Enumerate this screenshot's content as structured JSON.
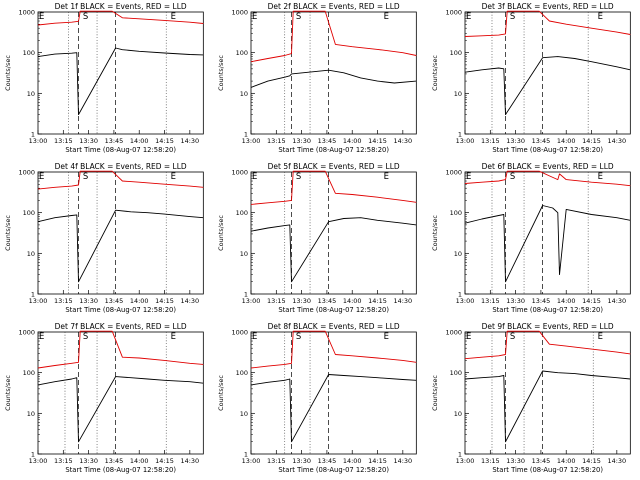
{
  "chart_data": [
    {
      "type": "line",
      "title": "Det 1f BLACK = Events, RED = LLD",
      "xlabel": "Start Time (08-Aug-07 12:58:20)",
      "ylabel": "Counts/sec",
      "yscale": "log",
      "ylim": [
        1,
        1000
      ],
      "y_ticks": [
        "1",
        "10",
        "100",
        "1000"
      ],
      "xlim": [
        "13:00",
        "14:38"
      ],
      "x_ticks": [
        "13:00",
        "13:15",
        "13:30",
        "13:45",
        "14:00",
        "14:15",
        "14:30"
      ],
      "markers": [
        {
          "label": "E",
          "x": "13:00"
        },
        {
          "label": "S",
          "x": "13:26"
        },
        {
          "label": "E",
          "x": "14:18"
        }
      ],
      "dotted_lines": [
        "13:18",
        "13:35",
        "14:16"
      ],
      "dashed_lines": [
        "13:24",
        "13:46"
      ],
      "series": [
        {
          "name": "Events",
          "color": "#000000",
          "x": [
            "13:00",
            "13:10",
            "13:20",
            "13:23",
            "13:24",
            "13:46",
            "13:50",
            "14:00",
            "14:15",
            "14:30",
            "14:38"
          ],
          "y": [
            80,
            92,
            97,
            100,
            3,
            130,
            118,
            108,
            98,
            90,
            88
          ]
        },
        {
          "name": "LLD",
          "color": "#e00000",
          "x": [
            "13:00",
            "13:10",
            "13:20",
            "13:24",
            "13:25",
            "13:44",
            "13:50",
            "14:00",
            "14:15",
            "14:30",
            "14:38"
          ],
          "y": [
            480,
            530,
            560,
            590,
            1100,
            1100,
            720,
            680,
            620,
            560,
            520
          ]
        }
      ]
    },
    {
      "type": "line",
      "title": "Det 2f BLACK = Events, RED = LLD",
      "xlabel": "Start Time (08-Aug-07 12:58:20)",
      "ylabel": "Counts/sec",
      "yscale": "log",
      "ylim": [
        1,
        1000
      ],
      "y_ticks": [
        "1",
        "10",
        "100",
        "1000"
      ],
      "xlim": [
        "13:00",
        "14:38"
      ],
      "x_ticks": [
        "13:00",
        "13:15",
        "13:30",
        "13:45",
        "14:00",
        "14:15",
        "14:30"
      ],
      "markers": [
        {
          "label": "E",
          "x": "13:00"
        },
        {
          "label": "S",
          "x": "13:26"
        },
        {
          "label": "E",
          "x": "14:18"
        }
      ],
      "dotted_lines": [
        "13:20",
        "13:35"
      ],
      "dashed_lines": [
        "13:24",
        "13:46"
      ],
      "series": [
        {
          "name": "Events",
          "color": "#000000",
          "x": [
            "13:00",
            "13:10",
            "13:20",
            "13:23",
            "13:24",
            "13:46",
            "13:55",
            "14:05",
            "14:15",
            "14:25",
            "14:38"
          ],
          "y": [
            14,
            20,
            25,
            27,
            30,
            37,
            32,
            24,
            20,
            18,
            20
          ]
        },
        {
          "name": "LLD",
          "color": "#e00000",
          "x": [
            "13:00",
            "13:10",
            "13:20",
            "13:24",
            "13:25",
            "13:44",
            "13:50",
            "14:00",
            "14:15",
            "14:30",
            "14:38"
          ],
          "y": [
            60,
            72,
            85,
            95,
            1100,
            1100,
            160,
            140,
            120,
            100,
            85
          ]
        }
      ]
    },
    {
      "type": "line",
      "title": "Det 3f BLACK = Events, RED = LLD",
      "xlabel": "Start Time (08-Aug-07 12:58:20)",
      "ylabel": "Counts/sec",
      "yscale": "log",
      "ylim": [
        1,
        1000
      ],
      "y_ticks": [
        "1",
        "10",
        "100",
        "1000"
      ],
      "xlim": [
        "13:00",
        "14:38"
      ],
      "x_ticks": [
        "13:00",
        "13:15",
        "13:30",
        "13:45",
        "14:00",
        "14:15",
        "14:30"
      ],
      "markers": [
        {
          "label": "E",
          "x": "13:00"
        },
        {
          "label": "S",
          "x": "13:26"
        },
        {
          "label": "E",
          "x": "14:18"
        }
      ],
      "dotted_lines": [
        "13:16",
        "13:35",
        "14:13"
      ],
      "dashed_lines": [
        "13:24",
        "13:46"
      ],
      "series": [
        {
          "name": "Events",
          "color": "#000000",
          "x": [
            "13:00",
            "13:10",
            "13:20",
            "13:23",
            "13:24",
            "13:46",
            "13:55",
            "14:05",
            "14:15",
            "14:30",
            "14:38"
          ],
          "y": [
            33,
            38,
            42,
            40,
            3,
            75,
            80,
            72,
            60,
            45,
            38
          ]
        },
        {
          "name": "LLD",
          "color": "#e00000",
          "x": [
            "13:00",
            "13:10",
            "13:20",
            "13:24",
            "13:25",
            "13:44",
            "13:50",
            "14:00",
            "14:15",
            "14:30",
            "14:38"
          ],
          "y": [
            250,
            260,
            270,
            290,
            1100,
            1100,
            600,
            500,
            400,
            320,
            280
          ]
        }
      ]
    },
    {
      "type": "line",
      "title": "Det 4f BLACK = Events, RED = LLD",
      "xlabel": "Start Time (08-Aug-07 12:58:20)",
      "ylabel": "Counts/sec",
      "yscale": "log",
      "ylim": [
        1,
        1000
      ],
      "y_ticks": [
        "1",
        "10",
        "100",
        "1000"
      ],
      "xlim": [
        "13:00",
        "14:38"
      ],
      "x_ticks": [
        "13:00",
        "13:15",
        "13:30",
        "13:45",
        "14:00",
        "14:15",
        "14:30"
      ],
      "markers": [
        {
          "label": "E",
          "x": "13:00"
        },
        {
          "label": "S",
          "x": "13:26"
        },
        {
          "label": "E",
          "x": "14:18"
        }
      ],
      "dotted_lines": [
        "13:18",
        "13:35",
        "14:16"
      ],
      "dashed_lines": [
        "13:24",
        "13:46"
      ],
      "series": [
        {
          "name": "Events",
          "color": "#000000",
          "x": [
            "13:00",
            "13:10",
            "13:20",
            "13:23",
            "13:24",
            "13:46",
            "13:55",
            "14:05",
            "14:15",
            "14:30",
            "14:38"
          ],
          "y": [
            60,
            75,
            85,
            88,
            2,
            115,
            105,
            100,
            92,
            80,
            75
          ]
        },
        {
          "name": "LLD",
          "color": "#e00000",
          "x": [
            "13:00",
            "13:10",
            "13:20",
            "13:24",
            "13:25",
            "13:44",
            "13:50",
            "14:00",
            "14:15",
            "14:30",
            "14:38"
          ],
          "y": [
            380,
            420,
            450,
            480,
            1100,
            1100,
            600,
            560,
            500,
            450,
            420
          ]
        }
      ]
    },
    {
      "type": "line",
      "title": "Det 5f BLACK = Events, RED = LLD",
      "xlabel": "Start Time (08-Aug-07 12:58:20)",
      "ylabel": "Counts/sec",
      "yscale": "log",
      "ylim": [
        1,
        1000
      ],
      "y_ticks": [
        "1",
        "10",
        "100",
        "1000"
      ],
      "xlim": [
        "13:00",
        "14:38"
      ],
      "x_ticks": [
        "13:00",
        "13:15",
        "13:30",
        "13:45",
        "14:00",
        "14:15",
        "14:30"
      ],
      "markers": [
        {
          "label": "E",
          "x": "13:00"
        },
        {
          "label": "S",
          "x": "13:26"
        },
        {
          "label": "E",
          "x": "14:18"
        }
      ],
      "dotted_lines": [
        "13:20",
        "13:35"
      ],
      "dashed_lines": [
        "13:24",
        "13:46"
      ],
      "series": [
        {
          "name": "Events",
          "color": "#000000",
          "x": [
            "13:00",
            "13:10",
            "13:20",
            "13:23",
            "13:24",
            "13:46",
            "13:55",
            "14:05",
            "14:15",
            "14:30",
            "14:38"
          ],
          "y": [
            35,
            42,
            48,
            50,
            2,
            60,
            72,
            75,
            65,
            55,
            50
          ]
        },
        {
          "name": "LLD",
          "color": "#e00000",
          "x": [
            "13:00",
            "13:10",
            "13:20",
            "13:24",
            "13:25",
            "13:44",
            "13:50",
            "14:00",
            "14:15",
            "14:30",
            "14:38"
          ],
          "y": [
            160,
            175,
            190,
            200,
            1100,
            1100,
            300,
            280,
            240,
            200,
            180
          ]
        }
      ]
    },
    {
      "type": "line",
      "title": "Det 6f BLACK = Events, RED = LLD",
      "xlabel": "Start Time (08-Aug-07 12:58:20)",
      "ylabel": "Counts/sec",
      "yscale": "log",
      "ylim": [
        1,
        1000
      ],
      "y_ticks": [
        "1",
        "10",
        "100",
        "1000"
      ],
      "xlim": [
        "13:00",
        "14:38"
      ],
      "x_ticks": [
        "13:00",
        "13:15",
        "13:30",
        "13:45",
        "14:00",
        "14:15",
        "14:30"
      ],
      "markers": [
        {
          "label": "E",
          "x": "13:00"
        },
        {
          "label": "S",
          "x": "13:26"
        },
        {
          "label": "E",
          "x": "14:18"
        }
      ],
      "dotted_lines": [
        "13:16",
        "13:35",
        "14:13"
      ],
      "dashed_lines": [
        "13:24",
        "13:46"
      ],
      "series": [
        {
          "name": "Events",
          "color": "#000000",
          "x": [
            "13:00",
            "13:10",
            "13:20",
            "13:23",
            "13:24",
            "13:46",
            "13:52",
            "13:55",
            "13:56",
            "14:00",
            "14:15",
            "14:30",
            "14:38"
          ],
          "y": [
            55,
            70,
            85,
            90,
            2,
            150,
            130,
            100,
            3,
            120,
            90,
            75,
            65
          ]
        },
        {
          "name": "LLD",
          "color": "#e00000",
          "x": [
            "13:00",
            "13:10",
            "13:20",
            "13:24",
            "13:25",
            "13:44",
            "13:50",
            "13:55",
            "13:56",
            "14:00",
            "14:15",
            "14:30",
            "14:38"
          ],
          "y": [
            520,
            560,
            600,
            650,
            1100,
            1100,
            800,
            650,
            900,
            650,
            560,
            500,
            460
          ]
        }
      ]
    },
    {
      "type": "line",
      "title": "Det 7f BLACK = Events, RED = LLD",
      "xlabel": "Start Time (08-Aug-07 12:58:20)",
      "ylabel": "Counts/sec",
      "yscale": "log",
      "ylim": [
        1,
        1000
      ],
      "y_ticks": [
        "1",
        "10",
        "100",
        "1000"
      ],
      "xlim": [
        "13:00",
        "14:38"
      ],
      "x_ticks": [
        "13:00",
        "13:15",
        "13:30",
        "13:45",
        "14:00",
        "14:15",
        "14:30"
      ],
      "markers": [
        {
          "label": "E",
          "x": "13:00"
        },
        {
          "label": "S",
          "x": "13:26"
        },
        {
          "label": "E",
          "x": "14:18"
        }
      ],
      "dotted_lines": [
        "13:16",
        "13:35",
        "14:16"
      ],
      "dashed_lines": [
        "13:24",
        "13:46"
      ],
      "series": [
        {
          "name": "Events",
          "color": "#000000",
          "x": [
            "13:00",
            "13:10",
            "13:20",
            "13:23",
            "13:24",
            "13:46",
            "13:55",
            "14:05",
            "14:15",
            "14:30",
            "14:38"
          ],
          "y": [
            50,
            60,
            70,
            75,
            2,
            80,
            75,
            70,
            65,
            60,
            55
          ]
        },
        {
          "name": "LLD",
          "color": "#e00000",
          "x": [
            "13:00",
            "13:10",
            "13:20",
            "13:24",
            "13:25",
            "13:44",
            "13:50",
            "14:00",
            "14:15",
            "14:30",
            "14:38"
          ],
          "y": [
            130,
            150,
            170,
            180,
            1100,
            1100,
            240,
            230,
            200,
            170,
            160
          ]
        }
      ]
    },
    {
      "type": "line",
      "title": "Det 8f BLACK = Events, RED = LLD",
      "xlabel": "Start Time (08-Aug-07 12:58:20)",
      "ylabel": "Counts/sec",
      "yscale": "log",
      "ylim": [
        1,
        1000
      ],
      "y_ticks": [
        "1",
        "10",
        "100",
        "1000"
      ],
      "xlim": [
        "13:00",
        "14:38"
      ],
      "x_ticks": [
        "13:00",
        "13:15",
        "13:30",
        "13:45",
        "14:00",
        "14:15",
        "14:30"
      ],
      "markers": [
        {
          "label": "E",
          "x": "13:00"
        },
        {
          "label": "S",
          "x": "13:26"
        },
        {
          "label": "E",
          "x": "14:18"
        }
      ],
      "dotted_lines": [
        "13:20",
        "13:35"
      ],
      "dashed_lines": [
        "13:24",
        "13:46"
      ],
      "series": [
        {
          "name": "Events",
          "color": "#000000",
          "x": [
            "13:00",
            "13:10",
            "13:20",
            "13:23",
            "13:24",
            "13:46",
            "13:55",
            "14:05",
            "14:15",
            "14:30",
            "14:38"
          ],
          "y": [
            50,
            58,
            65,
            70,
            2,
            90,
            85,
            80,
            75,
            68,
            65
          ]
        },
        {
          "name": "LLD",
          "color": "#e00000",
          "x": [
            "13:00",
            "13:10",
            "13:20",
            "13:24",
            "13:25",
            "13:44",
            "13:50",
            "14:00",
            "14:15",
            "14:30",
            "14:38"
          ],
          "y": [
            130,
            145,
            160,
            170,
            1100,
            1100,
            280,
            260,
            230,
            200,
            180
          ]
        }
      ]
    },
    {
      "type": "line",
      "title": "Det 9f BLACK = Events, RED = LLD",
      "xlabel": "Start Time (08-Aug-07 12:58:20)",
      "ylabel": "Counts/sec",
      "yscale": "log",
      "ylim": [
        1,
        1000
      ],
      "y_ticks": [
        "1",
        "10",
        "100",
        "1000"
      ],
      "xlim": [
        "13:00",
        "14:38"
      ],
      "x_ticks": [
        "13:00",
        "13:15",
        "13:30",
        "13:45",
        "14:00",
        "14:15",
        "14:30"
      ],
      "markers": [
        {
          "label": "E",
          "x": "13:00"
        },
        {
          "label": "S",
          "x": "13:26"
        },
        {
          "label": "E",
          "x": "14:18"
        }
      ],
      "dotted_lines": [
        "13:16",
        "13:35",
        "14:16"
      ],
      "dashed_lines": [
        "13:24",
        "13:46"
      ],
      "series": [
        {
          "name": "Events",
          "color": "#000000",
          "x": [
            "13:00",
            "13:10",
            "13:20",
            "13:23",
            "13:24",
            "13:46",
            "13:55",
            "14:05",
            "14:15",
            "14:30",
            "14:38"
          ],
          "y": [
            70,
            75,
            80,
            85,
            2,
            110,
            100,
            95,
            85,
            75,
            70
          ]
        },
        {
          "name": "LLD",
          "color": "#e00000",
          "x": [
            "13:00",
            "13:10",
            "13:20",
            "13:24",
            "13:25",
            "13:44",
            "13:50",
            "14:00",
            "14:15",
            "14:30",
            "14:38"
          ],
          "y": [
            220,
            240,
            260,
            280,
            1100,
            1100,
            500,
            450,
            380,
            320,
            290
          ]
        }
      ]
    }
  ]
}
